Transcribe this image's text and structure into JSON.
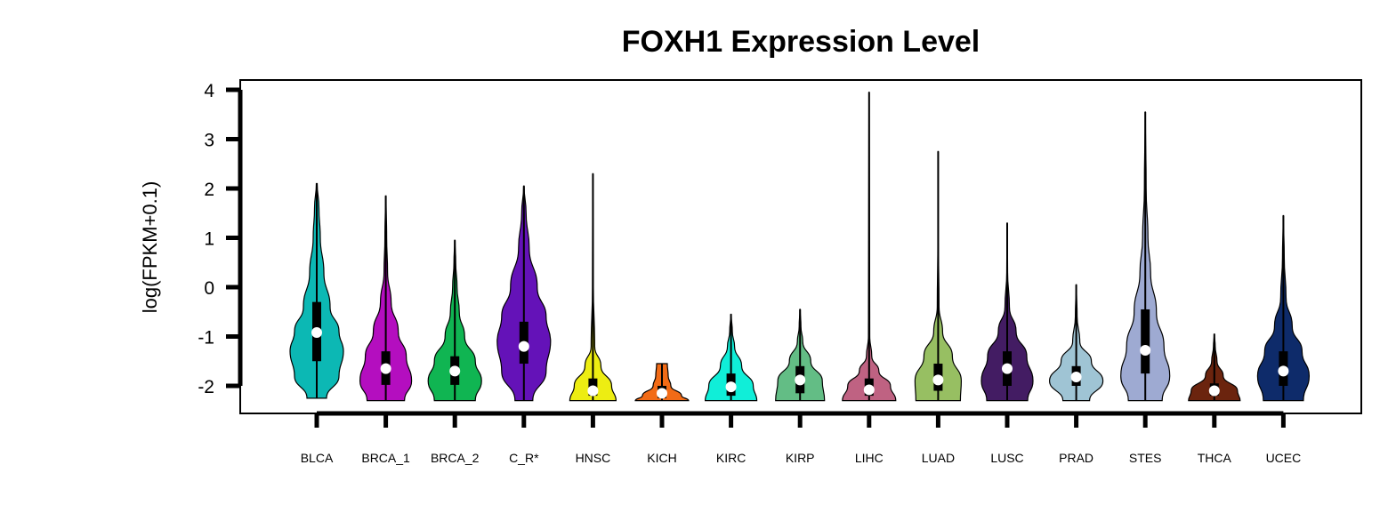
{
  "chart_data": {
    "type": "violin",
    "title": "FOXH1 Expression Level",
    "xlabel": "",
    "ylabel": "log(FPKM+0.1)",
    "ylim": [
      -2.3,
      4.2
    ],
    "yticks": [
      -2,
      -1,
      0,
      1,
      2,
      3,
      4
    ],
    "ytick_labels": [
      "-2",
      "-1",
      "0",
      "1",
      "2",
      "3",
      "4"
    ],
    "grid": false,
    "legend": "none",
    "categories": [
      "BLCA",
      "BRCA_1",
      "BRCA_2",
      "C_R*",
      "HNSC",
      "KICH",
      "KIRC",
      "KIRP",
      "LIHC",
      "LUAD",
      "LUSC",
      "PRAD",
      "STES",
      "THCA",
      "UCEC"
    ],
    "groups": [
      {
        "name": "BLCA",
        "color": "#0cb8b4",
        "min": -2.25,
        "max": 2.1,
        "q1": -1.5,
        "median": -0.92,
        "q3": -0.3,
        "whisker_low": -2.25,
        "whisker_high": 1.45,
        "density": [
          [
            -2.25,
            0.22
          ],
          [
            -1.8,
            0.5
          ],
          [
            -1.3,
            0.6
          ],
          [
            -0.9,
            0.5
          ],
          [
            -0.4,
            0.3
          ],
          [
            0.3,
            0.16
          ],
          [
            1.0,
            0.08
          ],
          [
            1.6,
            0.05
          ],
          [
            2.1,
            0.01
          ]
        ]
      },
      {
        "name": "BRCA_1",
        "color": "#b40ebf",
        "min": -2.3,
        "max": 1.85,
        "q1": -1.98,
        "median": -1.65,
        "q3": -1.3,
        "whisker_low": -2.3,
        "whisker_high": 1.85,
        "density": [
          [
            -2.3,
            0.42
          ],
          [
            -1.9,
            0.58
          ],
          [
            -1.4,
            0.46
          ],
          [
            -0.9,
            0.28
          ],
          [
            -0.3,
            0.12
          ],
          [
            0.3,
            0.04
          ],
          [
            1.0,
            0.02
          ],
          [
            1.85,
            0.005
          ]
        ]
      },
      {
        "name": "BRCA_2",
        "color": "#10b552",
        "min": -2.3,
        "max": 0.95,
        "q1": -1.98,
        "median": -1.7,
        "q3": -1.4,
        "whisker_low": -2.3,
        "whisker_high": 0.95,
        "density": [
          [
            -2.3,
            0.46
          ],
          [
            -1.9,
            0.6
          ],
          [
            -1.5,
            0.46
          ],
          [
            -1.0,
            0.22
          ],
          [
            -0.5,
            0.1
          ],
          [
            0.0,
            0.05
          ],
          [
            0.5,
            0.02
          ],
          [
            0.95,
            0.005
          ]
        ]
      },
      {
        "name": "C_R*",
        "color": "#6412b8",
        "min": -2.3,
        "max": 2.05,
        "q1": -1.55,
        "median": -1.2,
        "q3": -0.7,
        "whisker_low": -2.3,
        "whisker_high": 2.05,
        "density": [
          [
            -2.3,
            0.2
          ],
          [
            -1.7,
            0.5
          ],
          [
            -1.1,
            0.6
          ],
          [
            -0.6,
            0.5
          ],
          [
            0.0,
            0.3
          ],
          [
            0.8,
            0.12
          ],
          [
            1.5,
            0.05
          ],
          [
            2.05,
            0.005
          ]
        ]
      },
      {
        "name": "HNSC",
        "color": "#eded12",
        "min": -2.3,
        "max": 2.3,
        "q1": -2.2,
        "median": -2.1,
        "q3": -1.85,
        "whisker_low": -2.3,
        "whisker_high": 2.3,
        "density": [
          [
            -2.3,
            0.52
          ],
          [
            -2.0,
            0.42
          ],
          [
            -1.6,
            0.18
          ],
          [
            -1.2,
            0.04
          ],
          [
            0.0,
            0.01
          ],
          [
            2.3,
            0.003
          ]
        ]
      },
      {
        "name": "KICH",
        "color": "#f26b16",
        "min": -2.3,
        "max": -1.55,
        "q1": -2.25,
        "median": -2.15,
        "q3": -2.0,
        "whisker_low": -2.3,
        "whisker_high": -1.55,
        "density": [
          [
            -2.3,
            0.6
          ],
          [
            -2.2,
            0.44
          ],
          [
            -2.0,
            0.2
          ],
          [
            -1.8,
            0.14
          ],
          [
            -1.55,
            0.12
          ]
        ]
      },
      {
        "name": "KIRC",
        "color": "#10eed8",
        "min": -2.3,
        "max": -0.55,
        "q1": -2.2,
        "median": -2.02,
        "q3": -1.75,
        "whisker_low": -2.3,
        "whisker_high": -0.55,
        "density": [
          [
            -2.3,
            0.58
          ],
          [
            -2.0,
            0.5
          ],
          [
            -1.6,
            0.24
          ],
          [
            -1.2,
            0.08
          ],
          [
            -0.9,
            0.03
          ],
          [
            -0.55,
            0.005
          ]
        ]
      },
      {
        "name": "KIRP",
        "color": "#63bd85",
        "min": -2.3,
        "max": -0.45,
        "q1": -2.15,
        "median": -1.88,
        "q3": -1.6,
        "whisker_low": -2.3,
        "whisker_high": -0.45,
        "density": [
          [
            -2.3,
            0.55
          ],
          [
            -1.9,
            0.5
          ],
          [
            -1.5,
            0.24
          ],
          [
            -1.1,
            0.06
          ],
          [
            -0.8,
            0.02
          ],
          [
            -0.45,
            0.005
          ]
        ]
      },
      {
        "name": "LIHC",
        "color": "#bf6282",
        "min": -2.3,
        "max": 3.95,
        "q1": -2.2,
        "median": -2.08,
        "q3": -1.85,
        "whisker_low": -2.3,
        "whisker_high": 3.95,
        "density": [
          [
            -2.3,
            0.6
          ],
          [
            -2.0,
            0.48
          ],
          [
            -1.7,
            0.22
          ],
          [
            -1.4,
            0.06
          ],
          [
            -1.0,
            0.015
          ],
          [
            3.95,
            0.003
          ]
        ]
      },
      {
        "name": "LUAD",
        "color": "#97bf62",
        "min": -2.3,
        "max": 2.75,
        "q1": -2.1,
        "median": -1.88,
        "q3": -1.55,
        "whisker_low": -2.3,
        "whisker_high": 2.75,
        "density": [
          [
            -2.3,
            0.5
          ],
          [
            -1.9,
            0.52
          ],
          [
            -1.4,
            0.32
          ],
          [
            -0.9,
            0.1
          ],
          [
            -0.4,
            0.02
          ],
          [
            1.0,
            0.005
          ],
          [
            2.75,
            0.003
          ]
        ]
      },
      {
        "name": "LUSC",
        "color": "#431c63",
        "min": -2.3,
        "max": 1.3,
        "q1": -2.0,
        "median": -1.65,
        "q3": -1.3,
        "whisker_low": -2.3,
        "whisker_high": 1.3,
        "density": [
          [
            -2.3,
            0.46
          ],
          [
            -1.9,
            0.58
          ],
          [
            -1.4,
            0.44
          ],
          [
            -0.9,
            0.2
          ],
          [
            -0.4,
            0.05
          ],
          [
            0.3,
            0.01
          ],
          [
            1.3,
            0.003
          ]
        ]
      },
      {
        "name": "PRAD",
        "color": "#9fc4d4",
        "min": -2.3,
        "max": 0.05,
        "q1": -2.0,
        "median": -1.82,
        "q3": -1.6,
        "whisker_low": -2.3,
        "whisker_high": 0.05,
        "density": [
          [
            -2.3,
            0.3
          ],
          [
            -1.9,
            0.6
          ],
          [
            -1.5,
            0.34
          ],
          [
            -1.1,
            0.08
          ],
          [
            -0.6,
            0.02
          ],
          [
            0.05,
            0.003
          ]
        ]
      },
      {
        "name": "STES",
        "color": "#9eaad2",
        "min": -2.3,
        "max": 3.55,
        "q1": -1.75,
        "median": -1.28,
        "q3": -0.45,
        "whisker_low": -2.3,
        "whisker_high": 3.55,
        "density": [
          [
            -2.3,
            0.38
          ],
          [
            -1.8,
            0.55
          ],
          [
            -1.2,
            0.42
          ],
          [
            -0.5,
            0.25
          ],
          [
            0.3,
            0.12
          ],
          [
            1.0,
            0.06
          ],
          [
            2.0,
            0.02
          ],
          [
            3.55,
            0.003
          ]
        ]
      },
      {
        "name": "THCA",
        "color": "#6b240e",
        "min": -2.3,
        "max": -0.95,
        "q1": -2.2,
        "median": -2.1,
        "q3": -1.95,
        "whisker_low": -2.3,
        "whisker_high": -0.95,
        "density": [
          [
            -2.3,
            0.58
          ],
          [
            -2.1,
            0.52
          ],
          [
            -1.8,
            0.2
          ],
          [
            -1.5,
            0.06
          ],
          [
            -1.2,
            0.02
          ],
          [
            -0.95,
            0.003
          ]
        ]
      },
      {
        "name": "UCEC",
        "color": "#0e2b6a",
        "min": -2.3,
        "max": 1.45,
        "q1": -2.0,
        "median": -1.7,
        "q3": -1.3,
        "whisker_low": -2.3,
        "whisker_high": 1.45,
        "density": [
          [
            -2.3,
            0.45
          ],
          [
            -1.8,
            0.58
          ],
          [
            -1.3,
            0.42
          ],
          [
            -0.8,
            0.2
          ],
          [
            -0.2,
            0.06
          ],
          [
            0.6,
            0.02
          ],
          [
            1.45,
            0.003
          ]
        ]
      }
    ]
  }
}
